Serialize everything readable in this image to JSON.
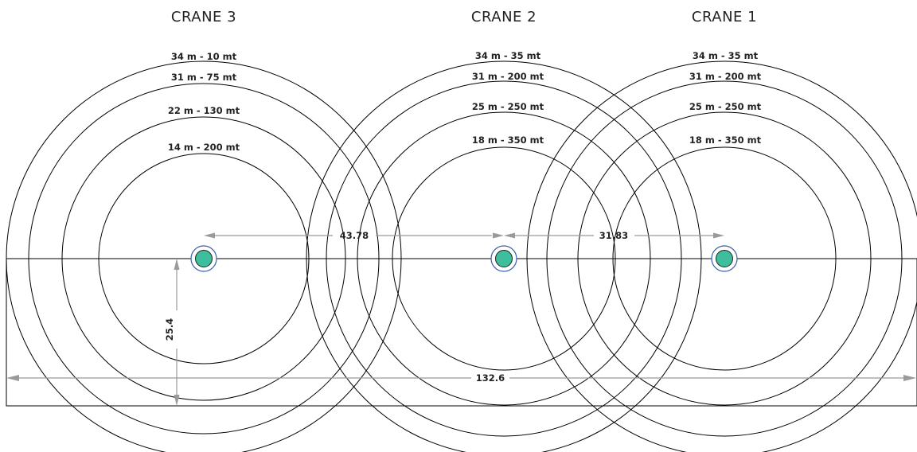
{
  "cranes": [
    {
      "title": "CRANE 3",
      "rings": [
        {
          "label": "34 m - 10 mt"
        },
        {
          "label": "31 m - 75 mt"
        },
        {
          "label": "22 m - 130 mt"
        },
        {
          "label": "14 m - 200 mt"
        }
      ]
    },
    {
      "title": "CRANE 2",
      "rings": [
        {
          "label": "34 m - 35 mt"
        },
        {
          "label": "31 m - 200 mt"
        },
        {
          "label": "25 m - 250 mt"
        },
        {
          "label": "18 m - 350 mt"
        }
      ]
    },
    {
      "title": "CRANE 1",
      "rings": [
        {
          "label": "34 m - 35 mt"
        },
        {
          "label": "31 m - 200 mt"
        },
        {
          "label": "25 m - 250 mt"
        },
        {
          "label": "18 m - 350 mt"
        }
      ]
    }
  ],
  "dimensions": {
    "crane3_to_crane2": "43.78",
    "crane2_to_crane1": "31.83",
    "site_length": "132.6",
    "site_offset": "25.4"
  },
  "colors": {
    "marker_fill": "#3dbf9d",
    "marker_ring": "#3b5fa8",
    "dimension_line": "#9a9a9a",
    "lines": "#000000"
  }
}
